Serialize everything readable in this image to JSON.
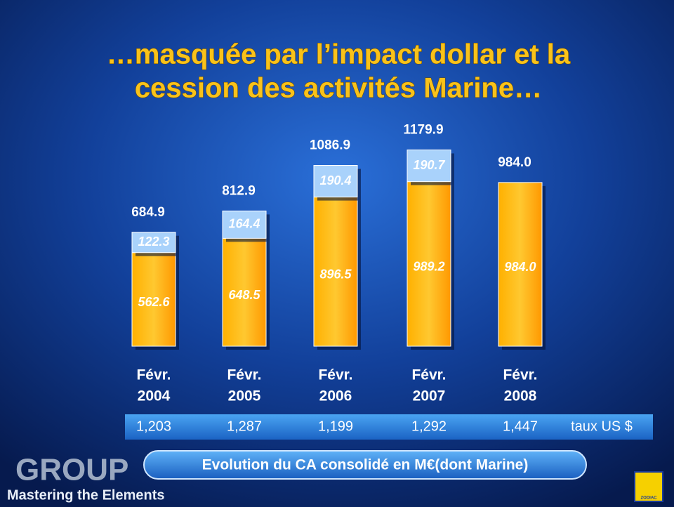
{
  "chart_data": {
    "type": "stacked-bar",
    "title": [
      "…masquée par l’impact dollar et la",
      "cession des activités Marine…"
    ],
    "categories": [
      [
        "Févr.",
        "2004"
      ],
      [
        "Févr.",
        "2005"
      ],
      [
        "Févr.",
        "2006"
      ],
      [
        "Févr.",
        "2007"
      ],
      [
        "Févr.",
        "2008"
      ]
    ],
    "series": [
      {
        "color": "#ffa000",
        "values": [
          562.6,
          648.5,
          896.5,
          989.2,
          984.0
        ],
        "value_labels": [
          "562.6",
          "648.5",
          "896.5",
          "989.2",
          "984.0"
        ]
      },
      {
        "color": "#a9d2fb",
        "values": [
          122.3,
          164.4,
          190.4,
          190.7,
          null
        ]
      }
    ],
    "totals": [
      684.9,
      812.9,
      1086.9,
      1179.9,
      984.0
    ],
    "totals_labels": [
      "684.9",
      "812.9",
      "1086.9",
      "1179.9",
      "984.0"
    ],
    "ylim": [
      0,
      1490
    ],
    "rates": [
      "1,203",
      "1,287",
      "1,199",
      "1,292",
      "1,447"
    ],
    "rates_label": "taux US $",
    "caption": "Evolution du CA consolidé en M€(dont Marine)"
  },
  "footer": {
    "logo": "GROUP",
    "tagline": "Mastering the Elements",
    "brand": "ZODIAC"
  }
}
